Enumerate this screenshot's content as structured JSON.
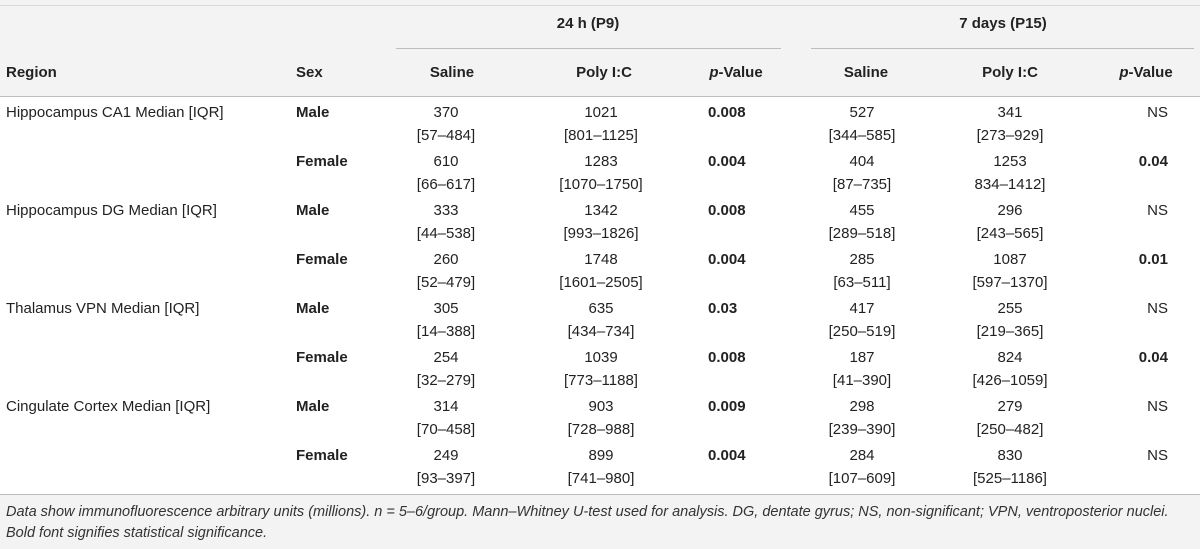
{
  "header": {
    "group1": "24 h (P9)",
    "group2": "7 days (P15)",
    "col_region": "Region",
    "col_sex": "Sex",
    "col_saline": "Saline",
    "col_poly": "Poly I:C",
    "col_p_italic": "p",
    "col_p_rest": "-Value"
  },
  "rows": [
    {
      "region": "Hippocampus CA1 Median [IQR]",
      "sex": "Male",
      "s24": "370",
      "s24_iqr": "[57–484]",
      "p24": "1021",
      "p24_iqr": "[801–1125]",
      "pv24": "0.008",
      "s7": "527",
      "s7_iqr": "[344–585]",
      "p7": "341",
      "p7_iqr": "[273–929]",
      "pv7": "NS"
    },
    {
      "region": "",
      "sex": "Female",
      "s24": "610",
      "s24_iqr": "[66–617]",
      "p24": "1283",
      "p24_iqr": "[1070–1750]",
      "pv24": "0.004",
      "s7": "404",
      "s7_iqr": "[87–735]",
      "p7": "1253",
      "p7_iqr": "834–1412]",
      "pv7": "0.04"
    },
    {
      "region": "Hippocampus DG Median [IQR]",
      "sex": "Male",
      "s24": "333",
      "s24_iqr": "[44–538]",
      "p24": "1342",
      "p24_iqr": "[993–1826]",
      "pv24": "0.008",
      "s7": "455",
      "s7_iqr": "[289–518]",
      "p7": "296",
      "p7_iqr": "[243–565]",
      "pv7": "NS"
    },
    {
      "region": "",
      "sex": "Female",
      "s24": "260",
      "s24_iqr": "[52–479]",
      "p24": "1748",
      "p24_iqr": "[1601–2505]",
      "pv24": "0.004",
      "s7": "285",
      "s7_iqr": "[63–511]",
      "p7": "1087",
      "p7_iqr": "[597–1370]",
      "pv7": "0.01"
    },
    {
      "region": "Thalamus VPN Median [IQR]",
      "sex": "Male",
      "s24": "305",
      "s24_iqr": "[14–388]",
      "p24": "635",
      "p24_iqr": "[434–734]",
      "pv24": "0.03",
      "s7": "417",
      "s7_iqr": "[250–519]",
      "p7": "255",
      "p7_iqr": "[219–365]",
      "pv7": "NS"
    },
    {
      "region": "",
      "sex": "Female",
      "s24": "254",
      "s24_iqr": "[32–279]",
      "p24": "1039",
      "p24_iqr": "[773–1188]",
      "pv24": "0.008",
      "s7": "187",
      "s7_iqr": "[41–390]",
      "p7": "824",
      "p7_iqr": "[426–1059]",
      "pv7": "0.04"
    },
    {
      "region": "Cingulate Cortex Median [IQR]",
      "sex": "Male",
      "s24": "314",
      "s24_iqr": "[70–458]",
      "p24": "903",
      "p24_iqr": "[728–988]",
      "pv24": "0.009",
      "s7": "298",
      "s7_iqr": "[239–390]",
      "p7": "279",
      "p7_iqr": "[250–482]",
      "pv7": "NS"
    },
    {
      "region": "",
      "sex": "Female",
      "s24": "249",
      "s24_iqr": "[93–397]",
      "p24": "899",
      "p24_iqr": "[741–980]",
      "pv24": "0.004",
      "s7": "284",
      "s7_iqr": "[107–609]",
      "p7": "830",
      "p7_iqr": "[525–1186]",
      "pv7": "NS"
    }
  ],
  "footnote": "Data show immunofluorescence arbitrary units (millions). n = 5–6/group. Mann–Whitney U-test used for analysis. DG, dentate gyrus; NS, non-significant; VPN, ventroposterior nuclei. Bold font signifies statistical significance."
}
